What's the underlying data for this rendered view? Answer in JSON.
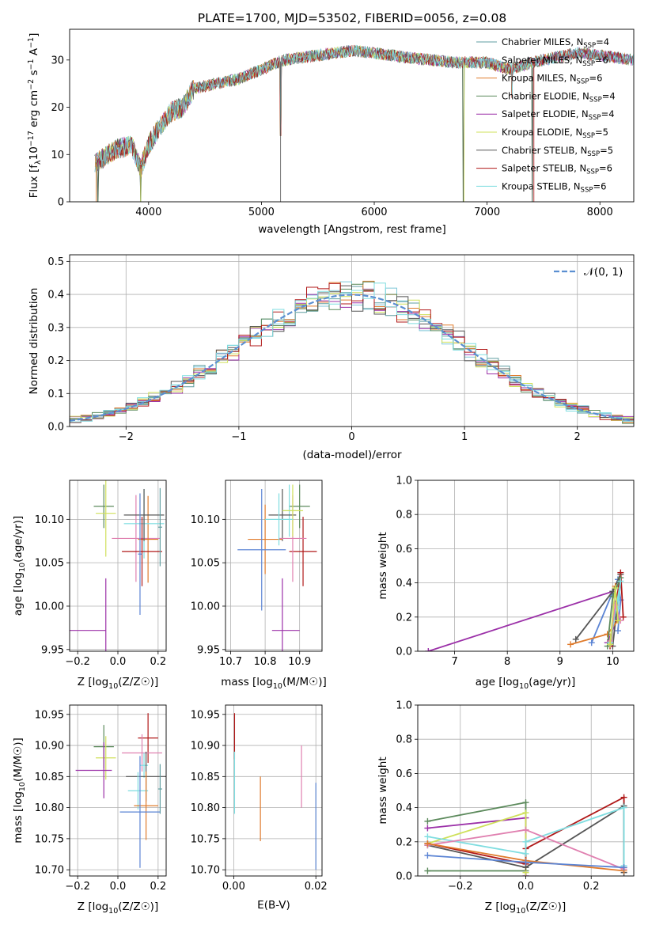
{
  "colors": {
    "chabrier_miles": "#5f9ea0",
    "salpeter_miles": "#7fc6d8",
    "kroupa_miles": "#e07b2c",
    "chabrier_elodie": "#5c8a5c",
    "salpeter_elodie": "#9b30a8",
    "kroupa_elodie": "#cfe05a",
    "chabrier_stelib": "#555555",
    "salpeter_stelib": "#b01818",
    "kroupa_stelib": "#7fdde0",
    "pink": "#e080b0",
    "blue": "#5b84d4",
    "normal_curve": "#5b8fd1"
  },
  "chart_data": [
    {
      "id": "spectrum",
      "type": "line",
      "title": "PLATE=1700, MJD=53502, FIBERID=0056, z=0.08",
      "xlabel": "wavelength [Angstrom, rest frame]",
      "ylabel": "Flux [f",
      "ylabel_parts": [
        "Flux [f",
        "λ",
        "10",
        "−17",
        " erg cm",
        "−2",
        " s",
        "−1",
        " A",
        "−1",
        "]"
      ],
      "xlim": [
        3300,
        8300
      ],
      "ylim": [
        0,
        36.5
      ],
      "xticks": [
        4000,
        5000,
        6000,
        7000,
        8000
      ],
      "yticks": [
        0,
        10,
        20,
        30
      ],
      "grid": false,
      "legend_placement": "upper-right",
      "series": [
        {
          "name": "Chabrier MILES",
          "nssp": "4"
        },
        {
          "name": "Salpeter MILES",
          "nssp": "6"
        },
        {
          "name": "Kroupa MILES",
          "nssp": "6"
        },
        {
          "name": "Chabrier ELODIE",
          "nssp": "4"
        },
        {
          "name": "Salpeter ELODIE",
          "nssp": "4"
        },
        {
          "name": "Kroupa ELODIE",
          "nssp": "5"
        },
        {
          "name": "Chabrier STELIB",
          "nssp": "5"
        },
        {
          "name": "Salpeter STELIB",
          "nssp": "6"
        },
        {
          "name": "Kroupa STELIB",
          "nssp": "6"
        }
      ],
      "legend_nssp_label": "N",
      "legend_nssp_sub": "SSP",
      "continuum_knots": [
        [
          3520,
          8
        ],
        [
          3700,
          11
        ],
        [
          3850,
          12
        ],
        [
          3930,
          7
        ],
        [
          4000,
          12
        ],
        [
          4100,
          16
        ],
        [
          4200,
          19
        ],
        [
          4300,
          20
        ],
        [
          4400,
          24
        ],
        [
          4600,
          25
        ],
        [
          4800,
          26
        ],
        [
          5000,
          28
        ],
        [
          5200,
          30
        ],
        [
          5500,
          31
        ],
        [
          5800,
          32
        ],
        [
          6000,
          31.5
        ],
        [
          6300,
          30.5
        ],
        [
          6500,
          30
        ],
        [
          6700,
          29.5
        ],
        [
          7000,
          29.5
        ],
        [
          7200,
          28
        ],
        [
          7400,
          29.5
        ],
        [
          7600,
          30.5
        ],
        [
          7800,
          31.5
        ],
        [
          8000,
          31
        ],
        [
          8300,
          30
        ]
      ],
      "dips": [
        [
          3550,
          0
        ],
        [
          3930,
          0
        ],
        [
          5170,
          14
        ],
        [
          6790,
          0
        ],
        [
          7220,
          22
        ],
        [
          7400,
          0
        ]
      ]
    },
    {
      "id": "residuals",
      "type": "bar",
      "title": "",
      "xlabel": "(data-model)/error",
      "ylabel": "Normed distribution",
      "xlim": [
        -2.5,
        2.5
      ],
      "ylim": [
        0,
        0.52
      ],
      "xticks": [
        -2,
        -1,
        0,
        1,
        2
      ],
      "yticks": [
        0.0,
        0.1,
        0.2,
        0.3,
        0.4,
        0.5
      ],
      "grid": true,
      "bin_width": 0.1,
      "legend": "𝒩(0, 1)",
      "legend_placement": "upper-right"
    },
    {
      "id": "age_vs_Z",
      "type": "scatter",
      "xlabel": "Z [log10(Z/Z☉)]",
      "ylabel": "age [log10(age/yr)]",
      "xlim": [
        -0.24,
        0.24
      ],
      "ylim": [
        9.948,
        10.145
      ],
      "xticks": [
        -0.2,
        0.0,
        0.2
      ],
      "yticks": [
        9.95,
        10.0,
        10.05,
        10.1
      ],
      "grid": true,
      "points": [
        {
          "c": "chabrier_elodie",
          "x": -0.07,
          "y": 10.115,
          "xe": 0.05,
          "ye": 0.025
        },
        {
          "c": "kroupa_elodie",
          "x": -0.06,
          "y": 10.107,
          "xe": 0.05,
          "ye": 0.05
        },
        {
          "c": "pink",
          "x": 0.09,
          "y": 10.078,
          "xe": 0.12,
          "ye": 0.05
        },
        {
          "c": "kroupa_miles",
          "x": 0.15,
          "y": 10.077,
          "xe": 0.05,
          "ye": 0.05
        },
        {
          "c": "kroupa_stelib",
          "x": 0.13,
          "y": 10.095,
          "xe": 0.1,
          "ye": 0.04
        },
        {
          "c": "salpeter_stelib",
          "x": 0.12,
          "y": 10.063,
          "xe": 0.1,
          "ye": 0.04
        },
        {
          "c": "chabrier_stelib",
          "x": 0.13,
          "y": 10.105,
          "xe": 0.1,
          "ye": 0.03
        },
        {
          "c": "chabrier_miles",
          "x": 0.21,
          "y": 10.091,
          "xe": 0.01,
          "ye": 0.045
        },
        {
          "c": "blue",
          "x": 0.11,
          "y": 10.06,
          "xe": 0.01,
          "ye": 0.07
        },
        {
          "c": "salpeter_elodie",
          "x": -0.15,
          "y": 9.972,
          "xe": 0.09,
          "ye": 0.0
        },
        {
          "c": "salpeter_elodie",
          "x": -0.06,
          "y": 9.99,
          "xe": 0.0,
          "ye": 0.042
        }
      ]
    },
    {
      "id": "age_vs_mass",
      "type": "scatter",
      "xlabel": "mass [log10(M/M☉)]",
      "ylabel": "",
      "xlim": [
        10.685,
        10.965
      ],
      "ylim": [
        9.948,
        10.145
      ],
      "xticks": [
        10.7,
        10.8,
        10.9
      ],
      "yticks": [
        9.95,
        10.0,
        10.05,
        10.1
      ],
      "grid": true,
      "points": [
        {
          "c": "salpeter_stelib",
          "x": 10.91,
          "y": 10.063,
          "xe": 0.04,
          "ye": 0.04
        },
        {
          "c": "chabrier_elodie",
          "x": 10.9,
          "y": 10.115,
          "xe": 0.03,
          "ye": 0.025
        },
        {
          "c": "kroupa_stelib",
          "x": 10.87,
          "y": 10.11,
          "xe": 0.02,
          "ye": 0.03
        },
        {
          "c": "chabrier_stelib",
          "x": 10.85,
          "y": 10.105,
          "xe": 0.04,
          "ye": 0.03
        },
        {
          "c": "pink",
          "x": 10.88,
          "y": 10.078,
          "xe": 0.04,
          "ye": 0.05
        },
        {
          "c": "kroupa_miles",
          "x": 10.8,
          "y": 10.077,
          "xe": 0.05,
          "ye": 0.04
        },
        {
          "c": "blue",
          "x": 10.79,
          "y": 10.065,
          "xe": 0.07,
          "ye": 0.07
        },
        {
          "c": "kroupa_elodie",
          "x": 10.88,
          "y": 10.11,
          "xe": 0.03,
          "ye": 0.03
        },
        {
          "c": "salpeter_elodie",
          "x": 10.86,
          "y": 9.972,
          "xe": 0.04,
          "ye": 0.0
        },
        {
          "c": "salpeter_elodie",
          "x": 10.85,
          "y": 9.99,
          "xe": 0.0,
          "ye": 0.042
        },
        {
          "c": "kroupa_stelib",
          "x": 10.84,
          "y": 10.1,
          "xe": 0.04,
          "ye": 0.03
        }
      ]
    },
    {
      "id": "mass_weight_vs_age",
      "type": "line",
      "xlabel": "age [log10(age/yr)]",
      "ylabel": "mass weight",
      "xlim": [
        6.3,
        10.4
      ],
      "ylim": [
        0.0,
        1.0
      ],
      "xticks": [
        7,
        8,
        9,
        10
      ],
      "yticks": [
        0.0,
        0.2,
        0.4,
        0.6,
        0.8,
        1.0
      ],
      "grid": true,
      "lines": [
        {
          "c": "salpeter_elodie",
          "pts": [
            [
              6.5,
              0.0
            ],
            [
              10.0,
              0.35
            ],
            [
              10.1,
              0.2
            ],
            [
              9.9,
              0.05
            ]
          ]
        },
        {
          "c": "blue",
          "pts": [
            [
              9.6,
              0.05
            ],
            [
              10.1,
              0.42
            ],
            [
              10.15,
              0.3
            ],
            [
              10.1,
              0.12
            ]
          ]
        },
        {
          "c": "chabrier_stelib",
          "pts": [
            [
              9.3,
              0.07
            ],
            [
              10.0,
              0.35
            ],
            [
              10.15,
              0.45
            ],
            [
              10.0,
              0.03
            ]
          ]
        },
        {
          "c": "kroupa_miles",
          "pts": [
            [
              9.2,
              0.04
            ],
            [
              9.9,
              0.1
            ],
            [
              10.1,
              0.18
            ],
            [
              10.05,
              0.38
            ]
          ]
        },
        {
          "c": "salpeter_stelib",
          "pts": [
            [
              9.95,
              0.03
            ],
            [
              10.15,
              0.46
            ],
            [
              10.2,
              0.2
            ]
          ]
        },
        {
          "c": "chabrier_elodie",
          "pts": [
            [
              9.9,
              0.03
            ],
            [
              10.0,
              0.32
            ],
            [
              10.15,
              0.43
            ]
          ]
        },
        {
          "c": "kroupa_stelib",
          "pts": [
            [
              9.95,
              0.05
            ],
            [
              10.15,
              0.41
            ],
            [
              10.1,
              0.25
            ]
          ]
        },
        {
          "c": "pink",
          "pts": [
            [
              9.95,
              0.06
            ],
            [
              10.05,
              0.27
            ],
            [
              10.15,
              0.18
            ]
          ]
        },
        {
          "c": "kroupa_elodie",
          "pts": [
            [
              9.95,
              0.04
            ],
            [
              10.05,
              0.37
            ],
            [
              10.1,
              0.18
            ]
          ]
        }
      ]
    },
    {
      "id": "mass_vs_Z",
      "type": "scatter",
      "xlabel": "Z [log10(Z/Z☉)]",
      "ylabel": "mass [log10(M/M☉)]",
      "xlim": [
        -0.24,
        0.24
      ],
      "ylim": [
        10.69,
        10.965
      ],
      "xticks": [
        -0.2,
        0.0,
        0.2
      ],
      "yticks": [
        10.7,
        10.75,
        10.8,
        10.85,
        10.9,
        10.95
      ],
      "grid": true,
      "points": [
        {
          "c": "chabrier_elodie",
          "x": -0.07,
          "y": 10.898,
          "xe": 0.05,
          "ye": 0.035
        },
        {
          "c": "kroupa_elodie",
          "x": -0.06,
          "y": 10.88,
          "xe": 0.05,
          "ye": 0.035
        },
        {
          "c": "salpeter_elodie",
          "x": -0.12,
          "y": 10.86,
          "xe": 0.09,
          "ye": 0.0
        },
        {
          "c": "salpeter_elodie",
          "x": -0.07,
          "y": 10.86,
          "xe": 0.0,
          "ye": 0.045
        },
        {
          "c": "salpeter_stelib",
          "x": 0.15,
          "y": 10.912,
          "xe": 0.05,
          "ye": 0.04
        },
        {
          "c": "pink",
          "x": 0.12,
          "y": 10.888,
          "xe": 0.1,
          "ye": 0.03
        },
        {
          "c": "kroupa_stelib",
          "x": 0.13,
          "y": 10.868,
          "xe": 0.02,
          "ye": 0.02
        },
        {
          "c": "chabrier_stelib",
          "x": 0.14,
          "y": 10.85,
          "xe": 0.1,
          "ye": 0.04
        },
        {
          "c": "chabrier_miles",
          "x": 0.21,
          "y": 10.83,
          "xe": 0.01,
          "ye": 0.04
        },
        {
          "c": "kroupa_stelib",
          "x": 0.1,
          "y": 10.827,
          "xe": 0.05,
          "ye": 0.03
        },
        {
          "c": "kroupa_miles",
          "x": 0.14,
          "y": 10.803,
          "xe": 0.06,
          "ye": 0.055
        },
        {
          "c": "blue",
          "x": 0.11,
          "y": 10.793,
          "xe": 0.1,
          "ye": 0.09
        }
      ]
    },
    {
      "id": "mass_vs_ebv",
      "type": "scatter",
      "xlabel": "E(B-V)",
      "ylabel": "",
      "xlim": [
        -0.002,
        0.0215
      ],
      "ylim": [
        10.69,
        10.965
      ],
      "xticks": [
        0.0,
        0.02
      ],
      "yticks": [
        10.7,
        10.75,
        10.8,
        10.85,
        10.9,
        10.95
      ],
      "grid": true,
      "points": [
        {
          "c": "salpeter_stelib",
          "x": 0.0002,
          "y": 10.915,
          "xe": 0,
          "ye": 0.037
        },
        {
          "c": "kroupa_stelib",
          "x": 0.0002,
          "y": 10.84,
          "xe": 0,
          "ye": 0.05
        },
        {
          "c": "kroupa_miles",
          "x": 0.0065,
          "y": 10.798,
          "xe": 0,
          "ye": 0.052
        },
        {
          "c": "pink",
          "x": 0.0165,
          "y": 10.85,
          "xe": 0,
          "ye": 0.05
        },
        {
          "c": "blue",
          "x": 0.02,
          "y": 10.77,
          "xe": 0,
          "ye": 0.07
        }
      ]
    },
    {
      "id": "mass_weight_vs_Z",
      "type": "line",
      "xlabel": "Z [log10(Z/Z☉)]",
      "ylabel": "mass weight",
      "xlim": [
        -0.33,
        0.33
      ],
      "ylim": [
        0.0,
        1.0
      ],
      "xticks": [
        -0.2,
        0.0,
        0.2
      ],
      "yticks": [
        0.0,
        0.2,
        0.4,
        0.6,
        0.8,
        1.0
      ],
      "grid": true,
      "lines": [
        {
          "c": "chabrier_elodie",
          "pts": [
            [
              -0.3,
              0.32
            ],
            [
              0.0,
              0.43
            ],
            [
              0.0,
              0.03
            ],
            [
              -0.3,
              0.03
            ]
          ]
        },
        {
          "c": "salpeter_elodie",
          "pts": [
            [
              -0.3,
              0.28
            ],
            [
              0.0,
              0.34
            ],
            [
              0.0,
              0.0
            ]
          ]
        },
        {
          "c": "kroupa_elodie",
          "pts": [
            [
              -0.3,
              0.19
            ],
            [
              0.0,
              0.37
            ],
            [
              0.0,
              0.02
            ]
          ]
        },
        {
          "c": "salpeter_stelib",
          "pts": [
            [
              -0.3,
              0.19
            ],
            [
              0.0,
              0.07
            ],
            [
              0.0,
              0.16
            ],
            [
              0.3,
              0.46
            ],
            [
              0.3,
              0.05
            ]
          ]
        },
        {
          "c": "chabrier_stelib",
          "pts": [
            [
              -0.3,
              0.18
            ],
            [
              0.0,
              0.05
            ],
            [
              0.3,
              0.41
            ],
            [
              0.3,
              0.02
            ]
          ]
        },
        {
          "c": "kroupa_stelib",
          "pts": [
            [
              -0.3,
              0.23
            ],
            [
              0.0,
              0.13
            ],
            [
              0.0,
              0.2
            ],
            [
              0.3,
              0.4
            ],
            [
              0.3,
              0.06
            ]
          ]
        },
        {
          "c": "pink",
          "pts": [
            [
              -0.3,
              0.18
            ],
            [
              0.0,
              0.27
            ],
            [
              0.3,
              0.04
            ]
          ]
        },
        {
          "c": "kroupa_miles",
          "pts": [
            [
              -0.3,
              0.19
            ],
            [
              0.0,
              0.09
            ],
            [
              0.3,
              0.03
            ]
          ]
        },
        {
          "c": "blue",
          "pts": [
            [
              -0.3,
              0.12
            ],
            [
              0.0,
              0.08
            ],
            [
              0.3,
              0.05
            ]
          ]
        }
      ]
    }
  ]
}
